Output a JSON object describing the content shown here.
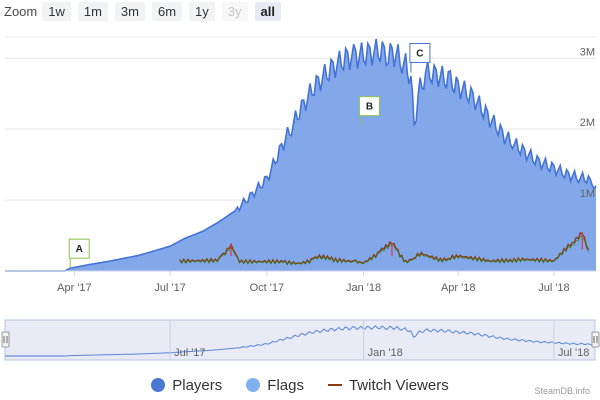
{
  "zoom": {
    "label": "Zoom",
    "buttons": [
      {
        "label": "1w",
        "state": "normal"
      },
      {
        "label": "1m",
        "state": "normal"
      },
      {
        "label": "3m",
        "state": "normal"
      },
      {
        "label": "6m",
        "state": "normal"
      },
      {
        "label": "1y",
        "state": "normal"
      },
      {
        "label": "3y",
        "state": "disabled"
      },
      {
        "label": "all",
        "state": "active"
      }
    ]
  },
  "chart_data": {
    "type": "area",
    "x_ticks": [
      "Apr '17",
      "Jul '17",
      "Oct '17",
      "Jan '18",
      "Apr '18",
      "Jul '18"
    ],
    "y_ticks": [
      "1M",
      "2M",
      "3M"
    ],
    "ylim": [
      0,
      3300000
    ],
    "grid": true,
    "legend_placement": "bottom",
    "colors": {
      "players": "#4572d6",
      "players_fill": "#7ba3e8",
      "flags": "#7fb0f0",
      "twitch": "#8b3a0f",
      "twitch_alt": "#2e7d1e",
      "twitch_peak": "#e0344b"
    },
    "series": [
      {
        "name": "Players",
        "points": [
          [
            "2017-03-23",
            0
          ],
          [
            "2017-03-28",
            40000
          ],
          [
            "2017-04-15",
            90000
          ],
          [
            "2017-05-01",
            130000
          ],
          [
            "2017-05-15",
            170000
          ],
          [
            "2017-06-01",
            220000
          ],
          [
            "2017-06-15",
            280000
          ],
          [
            "2017-07-01",
            350000
          ],
          [
            "2017-07-15",
            460000
          ],
          [
            "2017-08-01",
            560000
          ],
          [
            "2017-08-15",
            680000
          ],
          [
            "2017-09-01",
            850000
          ],
          [
            "2017-09-15",
            1050000
          ],
          [
            "2017-10-01",
            1300000
          ],
          [
            "2017-10-15",
            1750000
          ],
          [
            "2017-11-01",
            2250000
          ],
          [
            "2017-11-15",
            2600000
          ],
          [
            "2017-12-01",
            2850000
          ],
          [
            "2017-12-15",
            3000000
          ],
          [
            "2018-01-01",
            3050000
          ],
          [
            "2018-01-15",
            3100000
          ],
          [
            "2018-02-01",
            3050000
          ],
          [
            "2018-02-10",
            2900000
          ],
          [
            "2018-02-15",
            2750000
          ],
          [
            "2018-02-18",
            2000000
          ],
          [
            "2018-02-22",
            2500000
          ],
          [
            "2018-03-01",
            2800000
          ],
          [
            "2018-03-15",
            2750000
          ],
          [
            "2018-04-01",
            2600000
          ],
          [
            "2018-04-15",
            2450000
          ],
          [
            "2018-05-01",
            2150000
          ],
          [
            "2018-05-15",
            1900000
          ],
          [
            "2018-06-01",
            1700000
          ],
          [
            "2018-06-15",
            1550000
          ],
          [
            "2018-07-01",
            1450000
          ],
          [
            "2018-07-15",
            1350000
          ],
          [
            "2018-08-01",
            1300000
          ],
          [
            "2018-08-10",
            1200000
          ]
        ]
      },
      {
        "name": "Twitch Viewers",
        "points": [
          [
            "2017-07-10",
            150000
          ],
          [
            "2017-08-15",
            140000
          ],
          [
            "2017-08-28",
            380000
          ],
          [
            "2017-09-05",
            150000
          ],
          [
            "2017-10-01",
            140000
          ],
          [
            "2017-11-01",
            120000
          ],
          [
            "2017-11-20",
            190000
          ],
          [
            "2017-12-15",
            150000
          ],
          [
            "2018-01-01",
            120000
          ],
          [
            "2018-01-28",
            390000
          ],
          [
            "2018-02-10",
            140000
          ],
          [
            "2018-02-25",
            240000
          ],
          [
            "2018-03-15",
            160000
          ],
          [
            "2018-04-01",
            200000
          ],
          [
            "2018-05-01",
            130000
          ],
          [
            "2018-06-01",
            160000
          ],
          [
            "2018-07-01",
            130000
          ],
          [
            "2018-07-28",
            550000
          ],
          [
            "2018-08-05",
            200000
          ]
        ]
      }
    ]
  },
  "flags": [
    {
      "label": "A",
      "date": "2017-03-28",
      "value": 40000,
      "color": "#8bc34a"
    },
    {
      "label": "B",
      "date": "2017-12-29",
      "value": 2050000,
      "color": "#8bc34a"
    },
    {
      "label": "C",
      "date": "2018-02-15",
      "value": 2800000,
      "color": "#4572d6"
    }
  ],
  "navigator": {
    "labels": [
      "Jul '17",
      "Jan '18",
      "Jul '18"
    ]
  },
  "legend": {
    "items": [
      {
        "label": "Players",
        "kind": "dot",
        "color": "#4a78d0"
      },
      {
        "label": "Flags",
        "kind": "dot",
        "color": "#7fb0f0"
      },
      {
        "label": "Twitch Viewers",
        "kind": "line",
        "color": "#8b3a0f"
      }
    ]
  },
  "credit": "SteamDB.info"
}
